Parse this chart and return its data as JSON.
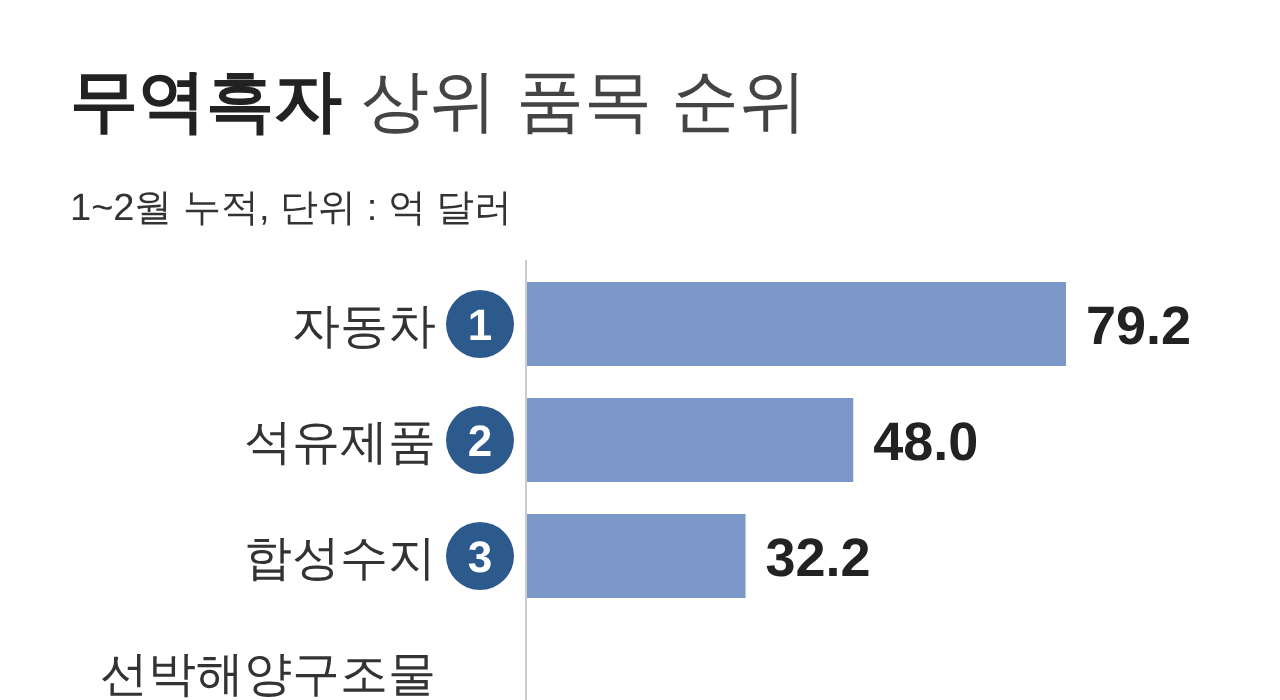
{
  "chart_data": {
    "type": "bar",
    "orientation": "horizontal",
    "title": "무역흑자 상위 품목 순위",
    "subtitle": "1~2월 누적, 단위 : 억 달러",
    "categories": [
      "자동차",
      "석유제품",
      "합성수지",
      "선박해양구조물"
    ],
    "values": [
      79.2,
      48.0,
      32.2,
      null
    ],
    "color": "#7c98c8",
    "value_labels": [
      "79.2",
      "48.0",
      "32.2",
      null
    ],
    "annotations": [
      "1",
      "2",
      "3"
    ]
  }
}
